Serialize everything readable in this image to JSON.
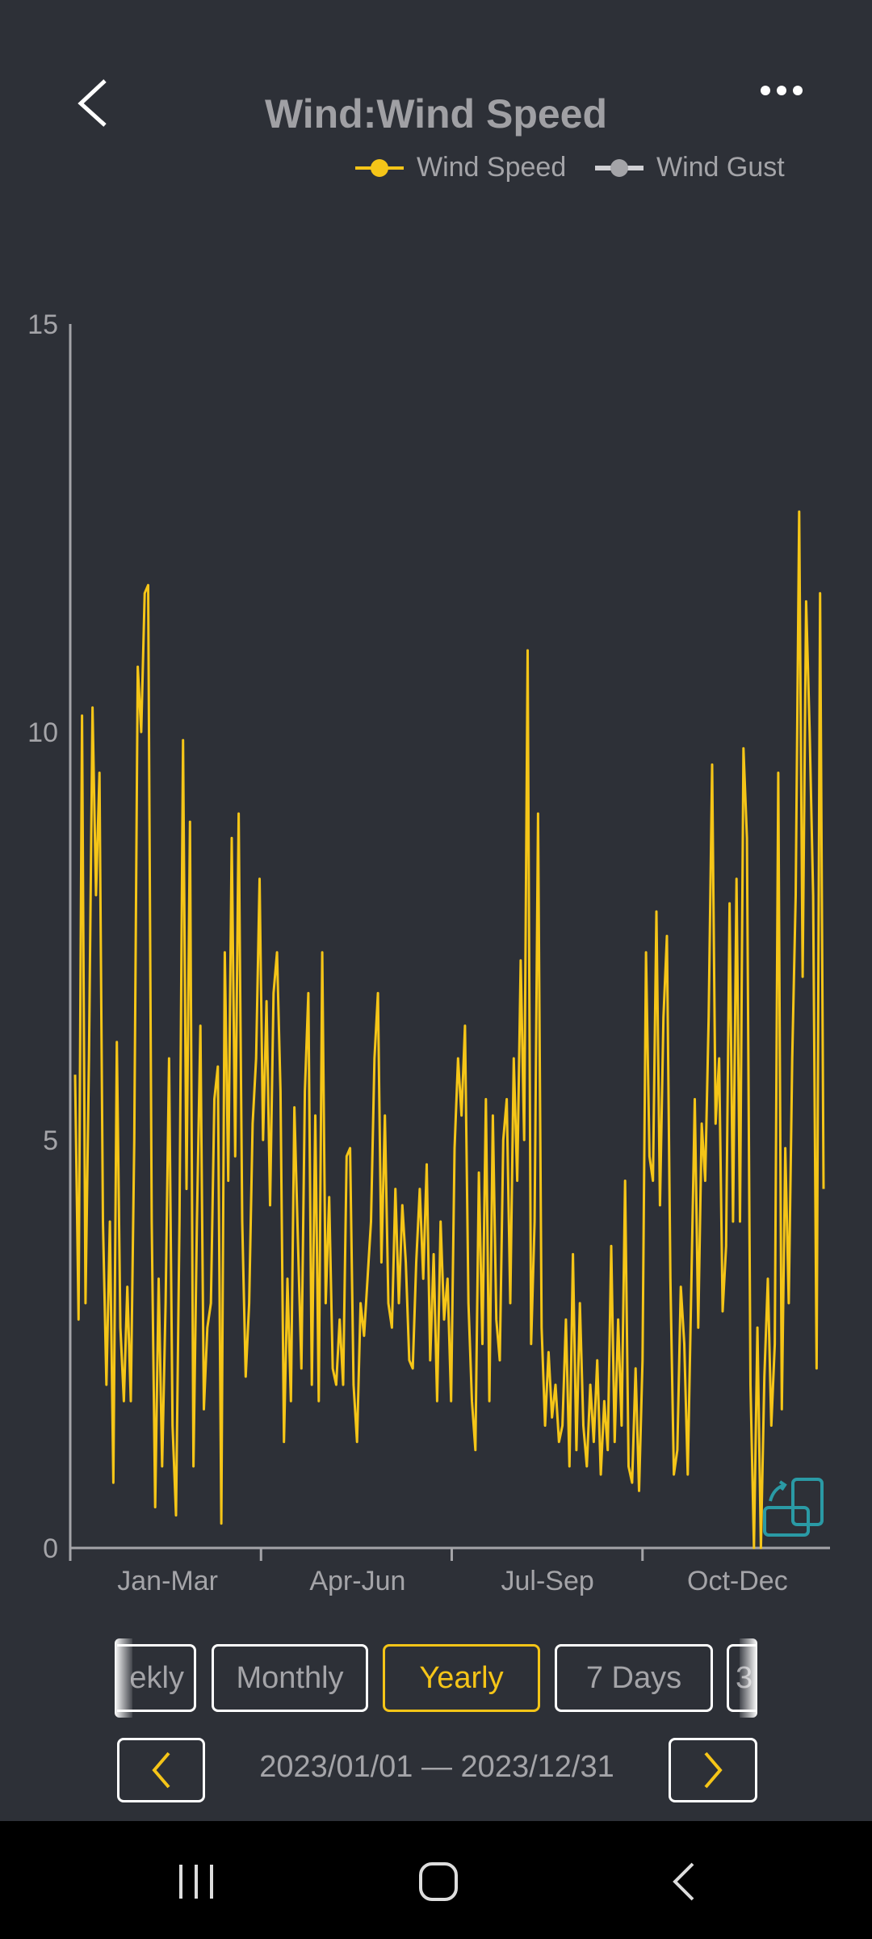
{
  "header": {
    "title": "Wind:Wind Speed",
    "back_icon": "chevron-left-icon",
    "more_icon": "more-horizontal-icon"
  },
  "legend": [
    {
      "label": "Wind Speed",
      "color": "#f5c518"
    },
    {
      "label": "Wind Gust",
      "color": "#a4a4a8"
    }
  ],
  "chart_data": {
    "type": "line",
    "title": "Wind:Wind Speed",
    "ylim": [
      0,
      15
    ],
    "y_ticks": [
      "0",
      "5",
      "10",
      "15"
    ],
    "x_ticks": [
      "Jan-Mar",
      "Apr-Jun",
      "Jul-Sep",
      "Oct-Dec"
    ],
    "grid": false,
    "legend_position": "top-right",
    "series": [
      {
        "name": "Wind Speed",
        "color": "#f5c518",
        "values": [
          5.8,
          2.8,
          10.2,
          3,
          6,
          10.3,
          8,
          9.5,
          4,
          2,
          4,
          0.8,
          6.2,
          2.7,
          1.8,
          3.2,
          1.8,
          5,
          10.8,
          10,
          11.7,
          11.8,
          4,
          0.5,
          3.3,
          1,
          3,
          6,
          1.5,
          0.4,
          4,
          9.9,
          4.4,
          8.9,
          1,
          4,
          6.4,
          1.7,
          2.7,
          3,
          5.5,
          5.9,
          0.3,
          7.3,
          4.5,
          8.7,
          4.8,
          9,
          4,
          2.1,
          3,
          5.2,
          6,
          8.2,
          5,
          6.7,
          4.2,
          6.8,
          7.3,
          5.6,
          1.3,
          3.3,
          1.8,
          5.4,
          3.8,
          2.2,
          5.6,
          6.8,
          2,
          5.3,
          1.8,
          7.3,
          3,
          4.3,
          2.2,
          2,
          2.8,
          2,
          4.8,
          4.9,
          2,
          1.3,
          3,
          2.6,
          3.3,
          4,
          6,
          6.8,
          3.5,
          5.3,
          3,
          2.7,
          4.4,
          3,
          4.2,
          3.5,
          2.3,
          2.2,
          3.5,
          4.4,
          3.3,
          4.7,
          2.3,
          3.6,
          1.8,
          4,
          2.8,
          3.3,
          1.8,
          4.9,
          6,
          5.3,
          6.4,
          3,
          1.8,
          1.2,
          4.6,
          2.5,
          5.5,
          1.8,
          5.3,
          2.8,
          2.3,
          5,
          5.5,
          3,
          6,
          4.5,
          7.2,
          5,
          11,
          2.5,
          4,
          9,
          2.7,
          1.5,
          2.4,
          1.6,
          2,
          1.3,
          1.5,
          2.8,
          1,
          3.6,
          1.2,
          3,
          1.5,
          1,
          2,
          1.3,
          2.3,
          0.9,
          1.8,
          1.2,
          3.7,
          1.3,
          2.8,
          1.5,
          4.5,
          1,
          0.8,
          2.2,
          0.7,
          2.3,
          7.3,
          4.8,
          4.5,
          7.8,
          4.2,
          6.5,
          7.5,
          3.3,
          0.9,
          1.2,
          3.2,
          2.5,
          0.9,
          3.2,
          5.5,
          2.7,
          5.2,
          4.5,
          6.5,
          9.6,
          5.2,
          6,
          2.9,
          3.7,
          7.9,
          4,
          8.2,
          4,
          9.8,
          8.7,
          2,
          0,
          2.7,
          0,
          2.1,
          3.3,
          1.5,
          2.5,
          9.5,
          1.7,
          4.9,
          3,
          6,
          8,
          12.7,
          7,
          11.6,
          10,
          8,
          2.2,
          11.7,
          4.4
        ]
      },
      {
        "name": "Wind Gust",
        "color": "#a4a4a8",
        "values": []
      }
    ]
  },
  "chart_icon": "rotate-screen-icon",
  "period_tabs": [
    {
      "label": "ekly",
      "selected": false
    },
    {
      "label": "Monthly",
      "selected": false
    },
    {
      "label": "Yearly",
      "selected": true
    },
    {
      "label": "7 Days",
      "selected": false
    },
    {
      "label": "3",
      "selected": false
    }
  ],
  "date_range": {
    "text": "2023/01/01 — 2023/12/31",
    "prev_icon": "chevron-left-icon",
    "next_icon": "chevron-right-icon",
    "accent": "#f5c518"
  },
  "system_nav": {
    "icons": [
      "recent-apps-icon",
      "home-icon",
      "back-icon"
    ]
  }
}
